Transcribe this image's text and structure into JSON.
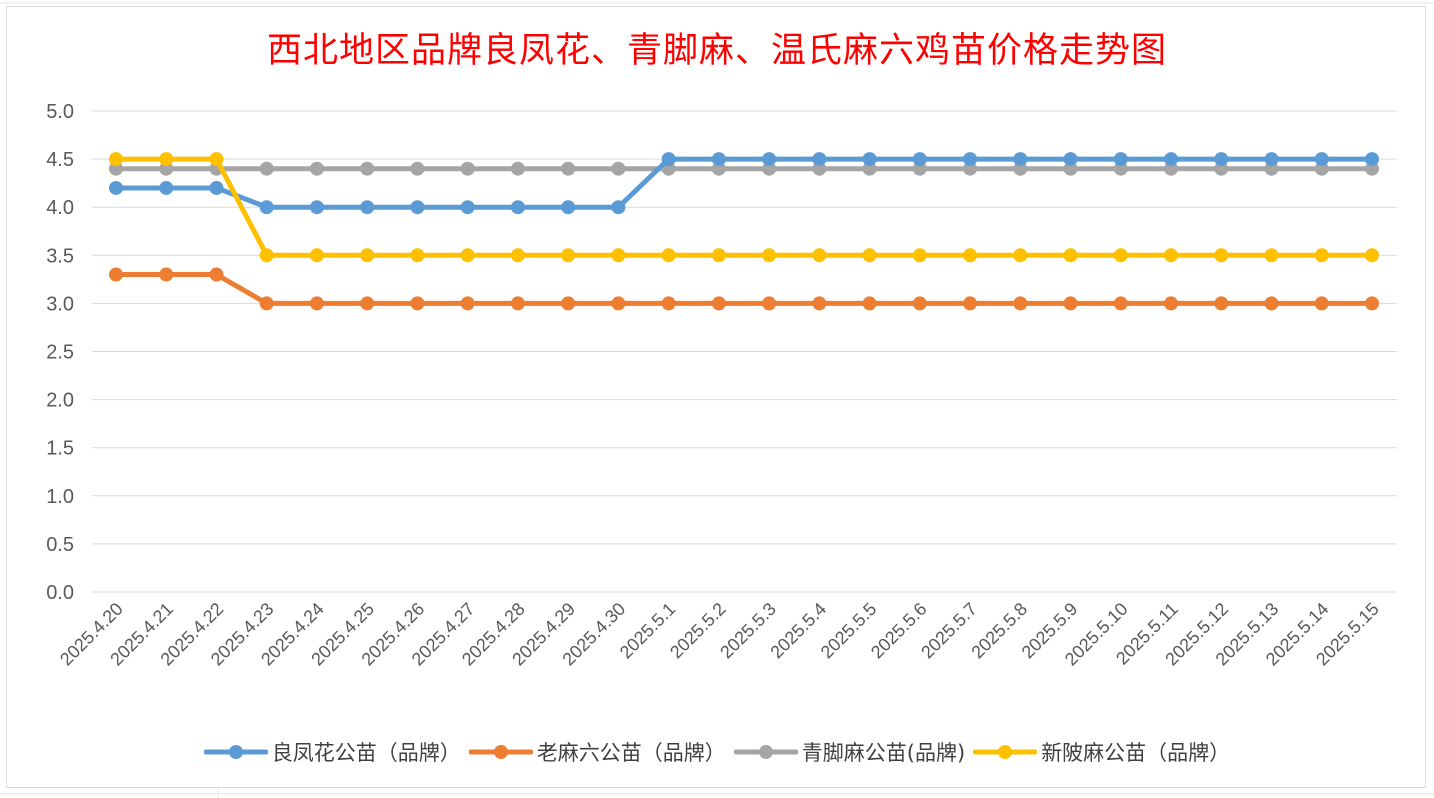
{
  "chart_data": {
    "type": "line",
    "title": "西北地区品牌良凤花、青脚麻、温氏麻六鸡苗价格走势图",
    "xlabel": "",
    "ylabel": "",
    "ylim": [
      0,
      5
    ],
    "ytick_step": 0.5,
    "ytick_labels": [
      "0.0",
      "0.5",
      "1.0",
      "1.5",
      "2.0",
      "2.5",
      "3.0",
      "3.5",
      "4.0",
      "4.5",
      "5.0"
    ],
    "grid": true,
    "legend_position": "bottom",
    "categories": [
      "2025.4.20",
      "2025.4.21",
      "2025.4.22",
      "2025.4.23",
      "2025.4.24",
      "2025.4.25",
      "2025.4.26",
      "2025.4.27",
      "2025.4.28",
      "2025.4.29",
      "2025.4.30",
      "2025.5.1",
      "2025.5.2",
      "2025.5.3",
      "2025.5.4",
      "2025.5.5",
      "2025.5.6",
      "2025.5.7",
      "2025.5.8",
      "2025.5.9",
      "2025.5.10",
      "2025.5.11",
      "2025.5.12",
      "2025.5.13",
      "2025.5.14",
      "2025.5.15"
    ],
    "series": [
      {
        "name": "良凤花公苗（品牌）",
        "color": "#5b9bd5",
        "values": [
          4.2,
          4.2,
          4.2,
          4.0,
          4.0,
          4.0,
          4.0,
          4.0,
          4.0,
          4.0,
          4.0,
          4.5,
          4.5,
          4.5,
          4.5,
          4.5,
          4.5,
          4.5,
          4.5,
          4.5,
          4.5,
          4.5,
          4.5,
          4.5,
          4.5,
          4.5
        ]
      },
      {
        "name": "老麻六公苗（品牌）",
        "color": "#ed7d31",
        "values": [
          3.3,
          3.3,
          3.3,
          3.0,
          3.0,
          3.0,
          3.0,
          3.0,
          3.0,
          3.0,
          3.0,
          3.0,
          3.0,
          3.0,
          3.0,
          3.0,
          3.0,
          3.0,
          3.0,
          3.0,
          3.0,
          3.0,
          3.0,
          3.0,
          3.0,
          3.0
        ]
      },
      {
        "name": "青脚麻公苗(品牌)",
        "color": "#a5a5a5",
        "values": [
          4.4,
          4.4,
          4.4,
          4.4,
          4.4,
          4.4,
          4.4,
          4.4,
          4.4,
          4.4,
          4.4,
          4.4,
          4.4,
          4.4,
          4.4,
          4.4,
          4.4,
          4.4,
          4.4,
          4.4,
          4.4,
          4.4,
          4.4,
          4.4,
          4.4,
          4.4
        ]
      },
      {
        "name": "新陂麻公苗（品牌）",
        "color": "#ffc000",
        "values": [
          4.5,
          4.5,
          4.5,
          3.5,
          3.5,
          3.5,
          3.5,
          3.5,
          3.5,
          3.5,
          3.5,
          3.5,
          3.5,
          3.5,
          3.5,
          3.5,
          3.5,
          3.5,
          3.5,
          3.5,
          3.5,
          3.5,
          3.5,
          3.5,
          3.5,
          3.5
        ]
      }
    ]
  }
}
